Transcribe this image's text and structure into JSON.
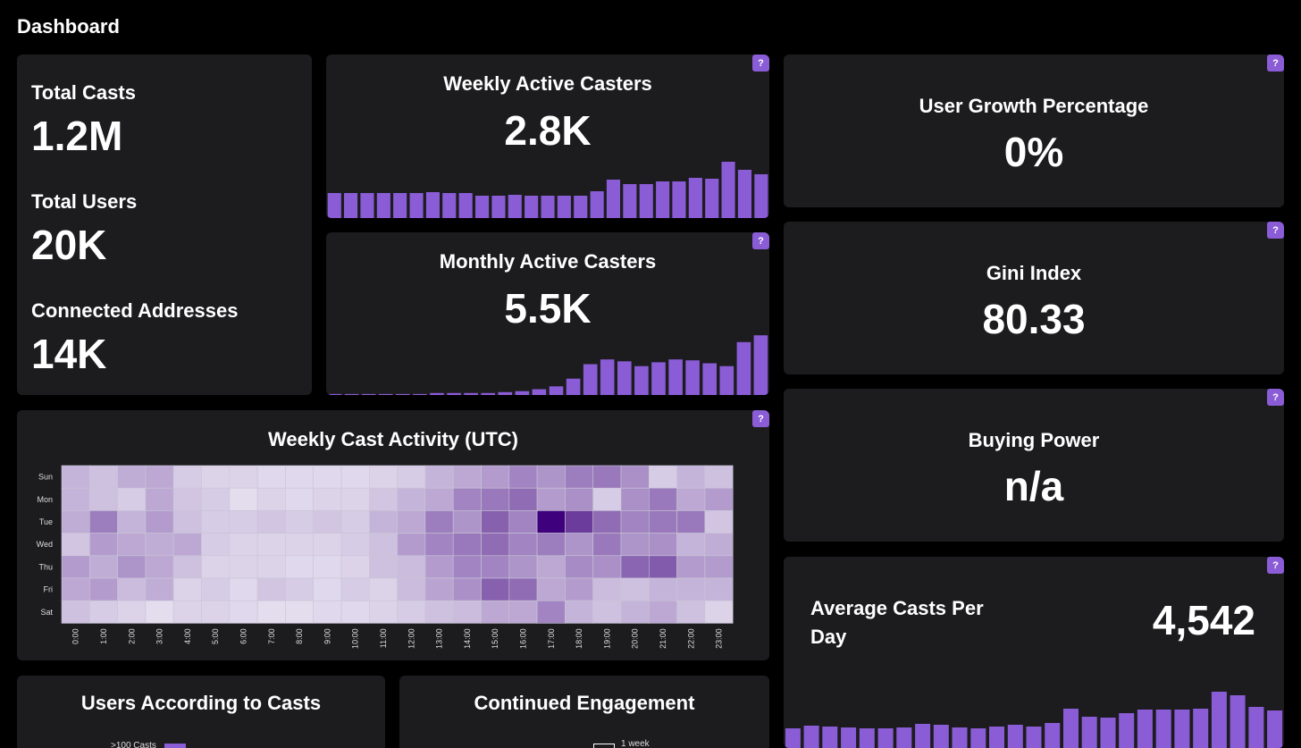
{
  "page": {
    "title": "Dashboard"
  },
  "summary": {
    "items": [
      {
        "label": "Total Casts",
        "value": "1.2M"
      },
      {
        "label": "Total Users",
        "value": "20K"
      },
      {
        "label": "Connected Addresses",
        "value": "14K"
      }
    ]
  },
  "wac": {
    "title": "Weekly Active Casters",
    "value": "2.8K",
    "help": "?"
  },
  "mac": {
    "title": "Monthly Active Casters",
    "value": "5.5K",
    "help": "?"
  },
  "growth": {
    "title": "User Growth Percentage",
    "value": "0%",
    "help": "?"
  },
  "gini": {
    "title": "Gini Index",
    "value": "80.33",
    "help": "?"
  },
  "buying": {
    "title": "Buying Power",
    "value": "n/a",
    "help": "?"
  },
  "avg": {
    "title": "Average Casts Per Day",
    "value": "4,542",
    "help": "?"
  },
  "activity": {
    "title": "Weekly Cast Activity (UTC)",
    "help": "?"
  },
  "users_casts": {
    "title": "Users According to Casts",
    "legend_label": ">100 Casts"
  },
  "engagement": {
    "title": "Continued Engagement",
    "legend_label": "1 week"
  },
  "colors": {
    "bar": "#8a5cd6",
    "card": "#1c1c1f"
  },
  "chart_data": [
    {
      "type": "bar",
      "title": "Weekly Active Casters",
      "values": [
        28,
        28,
        28,
        28,
        28,
        28,
        29,
        28,
        28,
        25,
        25,
        26,
        25,
        25,
        25,
        25,
        30,
        43,
        38,
        38,
        41,
        41,
        45,
        44,
        63,
        54,
        49
      ]
    },
    {
      "type": "bar",
      "title": "Monthly Active Casters",
      "values": [
        1,
        1,
        1,
        1,
        1,
        1,
        2,
        2,
        2,
        2,
        3,
        4,
        6,
        9,
        17,
        32,
        37,
        35,
        30,
        34,
        37,
        36,
        33,
        30,
        55,
        62
      ]
    },
    {
      "type": "bar",
      "title": "Average Casts Per Day",
      "values": [
        22,
        25,
        24,
        23,
        22,
        22,
        23,
        27,
        26,
        23,
        22,
        24,
        26,
        24,
        28,
        44,
        35,
        34,
        39,
        43,
        43,
        43,
        44,
        63,
        59,
        46,
        42
      ]
    },
    {
      "type": "heatmap",
      "title": "Weekly Cast Activity (UTC)",
      "y_categories": [
        "Sun",
        "Mon",
        "Tue",
        "Wed",
        "Thu",
        "Fri",
        "Sat"
      ],
      "x_categories": [
        "0:00",
        "1:00",
        "2:00",
        "3:00",
        "4:00",
        "5:00",
        "6:00",
        "7:00",
        "8:00",
        "9:00",
        "10:00",
        "11:00",
        "12:00",
        "13:00",
        "14:00",
        "15:00",
        "16:00",
        "17:00",
        "18:00",
        "19:00",
        "20:00",
        "21:00",
        "22:00",
        "23:00"
      ],
      "values": [
        [
          0.25,
          0.2,
          0.28,
          0.3,
          0.15,
          0.12,
          0.12,
          0.1,
          0.1,
          0.1,
          0.1,
          0.12,
          0.15,
          0.25,
          0.3,
          0.35,
          0.45,
          0.38,
          0.48,
          0.5,
          0.4,
          0.15,
          0.25,
          0.2
        ],
        [
          0.25,
          0.2,
          0.15,
          0.3,
          0.18,
          0.15,
          0.08,
          0.12,
          0.1,
          0.12,
          0.12,
          0.18,
          0.25,
          0.3,
          0.45,
          0.5,
          0.55,
          0.35,
          0.4,
          0.15,
          0.4,
          0.5,
          0.3,
          0.35
        ],
        [
          0.28,
          0.48,
          0.25,
          0.35,
          0.2,
          0.15,
          0.15,
          0.18,
          0.15,
          0.18,
          0.15,
          0.25,
          0.3,
          0.48,
          0.38,
          0.6,
          0.45,
          1.0,
          0.75,
          0.55,
          0.45,
          0.5,
          0.5,
          0.18
        ],
        [
          0.18,
          0.35,
          0.3,
          0.28,
          0.3,
          0.15,
          0.12,
          0.12,
          0.12,
          0.12,
          0.15,
          0.2,
          0.35,
          0.45,
          0.5,
          0.55,
          0.45,
          0.48,
          0.38,
          0.5,
          0.38,
          0.4,
          0.25,
          0.28
        ],
        [
          0.35,
          0.28,
          0.38,
          0.3,
          0.2,
          0.12,
          0.12,
          0.12,
          0.1,
          0.1,
          0.12,
          0.2,
          0.22,
          0.35,
          0.45,
          0.45,
          0.38,
          0.3,
          0.42,
          0.4,
          0.58,
          0.62,
          0.35,
          0.35
        ],
        [
          0.3,
          0.35,
          0.22,
          0.28,
          0.12,
          0.15,
          0.1,
          0.18,
          0.15,
          0.1,
          0.15,
          0.12,
          0.22,
          0.32,
          0.4,
          0.6,
          0.55,
          0.3,
          0.35,
          0.22,
          0.2,
          0.25,
          0.25,
          0.25
        ],
        [
          0.2,
          0.15,
          0.12,
          0.08,
          0.12,
          0.12,
          0.1,
          0.08,
          0.08,
          0.1,
          0.1,
          0.12,
          0.15,
          0.2,
          0.22,
          0.3,
          0.3,
          0.45,
          0.25,
          0.2,
          0.25,
          0.3,
          0.2,
          0.12
        ]
      ]
    }
  ]
}
